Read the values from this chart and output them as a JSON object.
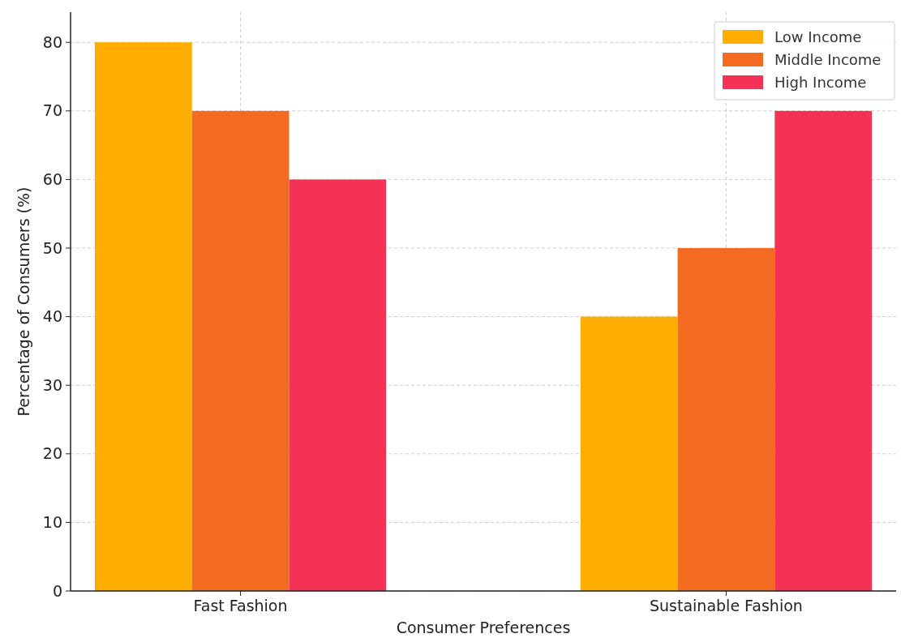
{
  "chart_data": {
    "type": "bar",
    "xlabel": "Consumer Preferences",
    "ylabel": "Percentage of Consumers (%)",
    "categories": [
      "Fast Fashion",
      "Sustainable Fashion"
    ],
    "series": [
      {
        "name": "Low Income",
        "color": "#ffae00",
        "values": [
          80,
          40
        ]
      },
      {
        "name": "Middle Income",
        "color": "#f26b21",
        "values": [
          70,
          50
        ]
      },
      {
        "name": "High Income",
        "color": "#f53255",
        "values": [
          60,
          70
        ]
      }
    ],
    "ylim": [
      0,
      84.4
    ],
    "yticks": [
      0,
      10,
      20,
      30,
      40,
      50,
      60,
      70,
      80
    ],
    "grid": true,
    "legend": "top right"
  }
}
